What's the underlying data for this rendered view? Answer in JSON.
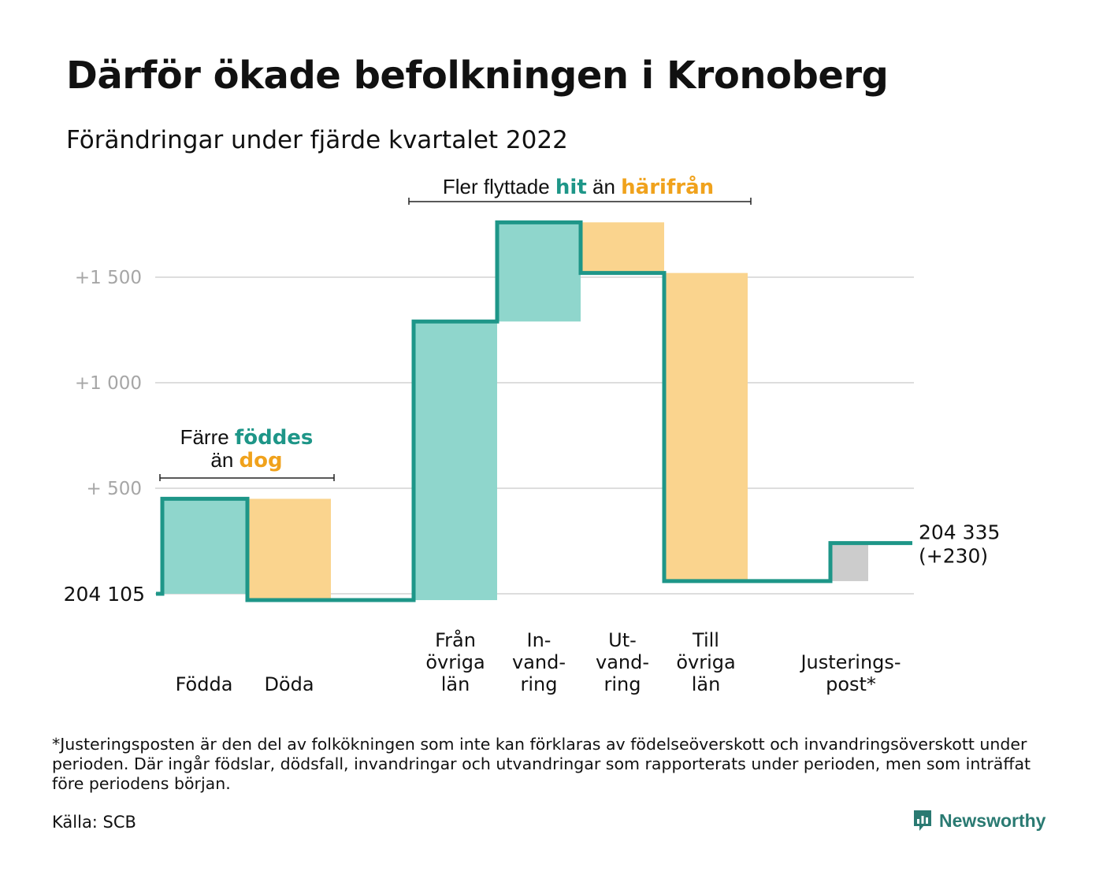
{
  "title": "Därför ökade befolkningen i Kronoberg",
  "subtitle": "Förändringar under fjärde kvartalet 2022",
  "footnote": "*Justeringsposten är den del av folkökningen som inte kan förklaras av födelseöverskott och invandringsöverskott under perioden. Där ingår födslar, dödsfall, invandringar och utvandringar som rapporterats under perioden, men som inträffat före periodens början.",
  "source": "Källa: SCB",
  "logo_text": "Newsworthy",
  "colors": {
    "teal_line": "#1e9688",
    "teal_fill": "#8fd6cc",
    "orange_fill": "#fad48e",
    "orange_text": "#f0a21c",
    "gray_fill": "#cccccc",
    "grid": "#dddddd",
    "tick_text": "#a6a6a6",
    "logo": "#2a7a72"
  },
  "chart_data": {
    "type": "waterfall",
    "start_value": 204105,
    "start_label": "204 105",
    "end_label": [
      "204 335",
      "(+230)"
    ],
    "ylim": [
      -50,
      1880
    ],
    "y_ticks": [
      {
        "value": 1500,
        "label": "+1 500"
      },
      {
        "value": 1000,
        "label": "+1 000"
      },
      {
        "value": 500,
        "label": "+ 500"
      },
      {
        "value": 0,
        "label": ""
      }
    ],
    "grid": true,
    "steps": [
      {
        "label": [
          "Födda"
        ],
        "change": 450,
        "sign": "positive"
      },
      {
        "label": [
          "Döda"
        ],
        "change": -480,
        "sign": "negative"
      },
      {
        "label": [
          "Från",
          "övriga",
          "län"
        ],
        "change": 1320,
        "sign": "positive"
      },
      {
        "label": [
          "In-",
          "vand-",
          "ring"
        ],
        "change": 470,
        "sign": "positive"
      },
      {
        "label": [
          "Ut-",
          "vand-",
          "ring"
        ],
        "change": -240,
        "sign": "negative"
      },
      {
        "label": [
          "Till",
          "övriga",
          "län"
        ],
        "change": -1460,
        "sign": "negative"
      },
      {
        "label": [
          "Justerings-",
          "post*"
        ],
        "change": 180,
        "sign": "adjustment"
      }
    ],
    "annotations": [
      {
        "parts": [
          {
            "text": "Färre ",
            "style": "plain"
          },
          {
            "text": "föddes",
            "style": "teal"
          }
        ],
        "line2": [
          {
            "text": "än ",
            "style": "plain"
          },
          {
            "text": "dog",
            "style": "orange"
          }
        ]
      },
      {
        "parts": [
          {
            "text": "Fler flyttade ",
            "style": "plain"
          },
          {
            "text": "hit",
            "style": "teal"
          },
          {
            "text": " än ",
            "style": "plain"
          },
          {
            "text": "härifrån",
            "style": "orange"
          }
        ]
      }
    ]
  }
}
